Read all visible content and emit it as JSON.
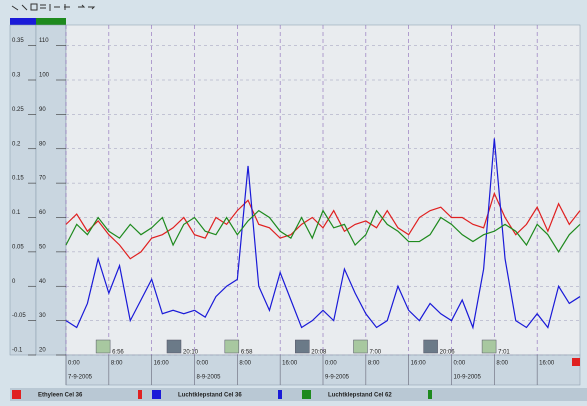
{
  "chart_data": {
    "type": "line",
    "x": [
      0,
      2,
      4,
      6,
      8,
      10,
      12,
      14,
      16,
      18,
      20,
      22,
      24,
      26,
      28,
      30,
      32,
      34,
      36,
      38,
      40,
      42,
      44,
      46,
      48,
      50,
      52,
      54,
      56,
      58,
      60,
      62,
      64,
      66,
      68,
      70,
      72,
      74,
      76,
      78,
      80,
      82,
      84,
      86,
      88,
      90,
      92,
      94,
      96
    ],
    "series": [
      {
        "name": "Ethyleen Cel 36",
        "color": "#e02020",
        "axis": "y2",
        "values": [
          58,
          61,
          56,
          59,
          55,
          52,
          48,
          50,
          54,
          55,
          57,
          60,
          55,
          54,
          60,
          58,
          62,
          65,
          58,
          57,
          54,
          55,
          58,
          60,
          57,
          62,
          56,
          58,
          59,
          57,
          62,
          57,
          55,
          60,
          62,
          63,
          60,
          60,
          58,
          57,
          67,
          60,
          55,
          58,
          63,
          56,
          64,
          58,
          62
        ]
      },
      {
        "name": "Luchtklepstand Cel 36",
        "color": "#1a1ad8",
        "axis": "y2",
        "values": [
          30,
          28,
          35,
          48,
          38,
          46,
          30,
          36,
          42,
          32,
          33,
          32,
          33,
          31,
          37,
          40,
          42,
          75,
          40,
          33,
          44,
          36,
          28,
          30,
          33,
          30,
          45,
          38,
          32,
          28,
          30,
          40,
          33,
          30,
          35,
          32,
          30,
          36,
          28,
          45,
          83,
          48,
          30,
          28,
          32,
          28,
          40,
          35,
          37
        ]
      },
      {
        "name": "Luchtklepstand Cel 62",
        "color": "#1e8a1e",
        "axis": "y2",
        "values": [
          52,
          58,
          55,
          60,
          56,
          54,
          58,
          55,
          57,
          60,
          52,
          58,
          60,
          56,
          55,
          60,
          55,
          59,
          62,
          60,
          56,
          54,
          60,
          54,
          62,
          57,
          58,
          52,
          55,
          62,
          58,
          56,
          53,
          53,
          55,
          60,
          58,
          55,
          53,
          55,
          56,
          58,
          56,
          52,
          58,
          55,
          50,
          55,
          58
        ]
      }
    ],
    "xlim": [
      0,
      96
    ],
    "xticks": [
      {
        "value": 0,
        "label": "0:00"
      },
      {
        "value": 8,
        "label": "8:00"
      },
      {
        "value": 16,
        "label": "16:00"
      },
      {
        "value": 24,
        "label": "0:00"
      },
      {
        "value": 32,
        "label": "8:00"
      },
      {
        "value": 40,
        "label": "16:00"
      },
      {
        "value": 48,
        "label": "0:00"
      },
      {
        "value": 56,
        "label": "8:00"
      },
      {
        "value": 64,
        "label": "16:00"
      },
      {
        "value": 72,
        "label": "0:00"
      },
      {
        "value": 80,
        "label": "8:00"
      },
      {
        "value": 88,
        "label": "16:00"
      }
    ],
    "xdates": [
      {
        "value": 0,
        "label": "7-9-2005"
      },
      {
        "value": 24,
        "label": "8-9-2005"
      },
      {
        "value": 48,
        "label": "9-9-2005"
      },
      {
        "value": 72,
        "label": "10-9-2005"
      }
    ],
    "events": [
      {
        "value": 6.93,
        "label": "6:56"
      },
      {
        "value": 20.17,
        "label": "20:10"
      },
      {
        "value": 30.97,
        "label": "6:58"
      },
      {
        "value": 44.13,
        "label": "20:08"
      },
      {
        "value": 55,
        "label": "7:00"
      },
      {
        "value": 68.1,
        "label": "20:06"
      },
      {
        "value": 79.02,
        "label": "7:01"
      }
    ],
    "ylim": [
      -0.1,
      0.38
    ],
    "yticks": [
      0.35,
      0.3,
      0.25,
      0.2,
      0.15,
      0.1,
      0.05,
      0,
      -0.05,
      -0.1
    ],
    "y2lim": [
      20,
      116
    ],
    "y2ticks": [
      110,
      100,
      90,
      80,
      70,
      60,
      50,
      40,
      30,
      20
    ],
    "grid": true
  }
}
